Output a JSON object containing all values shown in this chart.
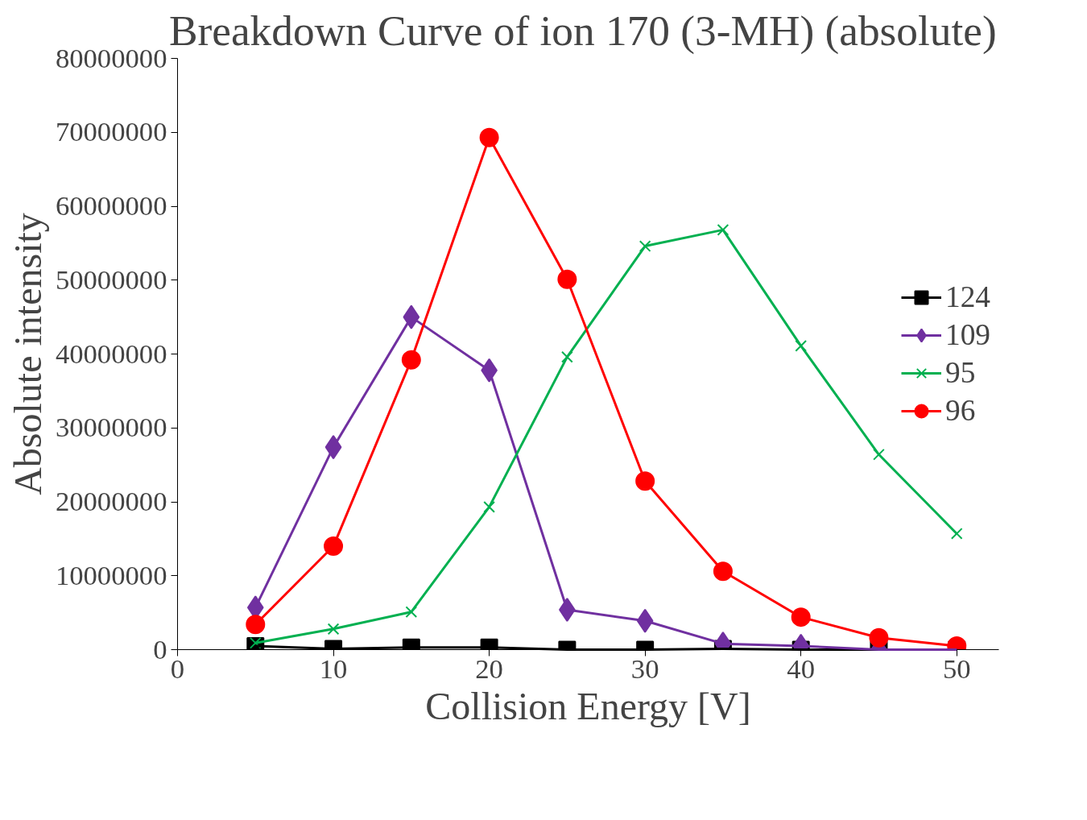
{
  "chart_data": {
    "type": "line",
    "title": "Breakdown Curve of ion 170 (3-MH)  (absolute)",
    "xlabel": "Collision Energy [V]",
    "ylabel": "Absolute intensity",
    "x": [
      5,
      10,
      15,
      20,
      25,
      30,
      35,
      40,
      45,
      50
    ],
    "series": [
      {
        "name": "124",
        "color": "#000000",
        "marker": "square",
        "values": [
          500000,
          100000,
          300000,
          300000,
          0,
          0,
          100000,
          0,
          0,
          0
        ]
      },
      {
        "name": "109",
        "color": "#7030a0",
        "marker": "diamond",
        "values": [
          5700000,
          27400000,
          45000000,
          37800000,
          5400000,
          3900000,
          800000,
          500000,
          0,
          0
        ]
      },
      {
        "name": "95",
        "color": "#00b050",
        "marker": "cross",
        "values": [
          900000,
          2800000,
          5100000,
          19300000,
          39600000,
          54600000,
          56800000,
          41100000,
          26400000,
          15700000
        ]
      },
      {
        "name": "96",
        "color": "#ff0000",
        "marker": "circle",
        "values": [
          3400000,
          14000000,
          39200000,
          69300000,
          50100000,
          22800000,
          10600000,
          4400000,
          1600000,
          500000
        ]
      }
    ],
    "xlim": [
      0,
      52.7
    ],
    "ylim": [
      0,
      80000000
    ],
    "xticks": [
      0,
      10,
      20,
      30,
      40,
      50
    ],
    "yticks": [
      0,
      10000000,
      20000000,
      30000000,
      40000000,
      50000000,
      60000000,
      70000000,
      80000000
    ],
    "grid": false,
    "legend": "right",
    "line_style": "solid"
  }
}
